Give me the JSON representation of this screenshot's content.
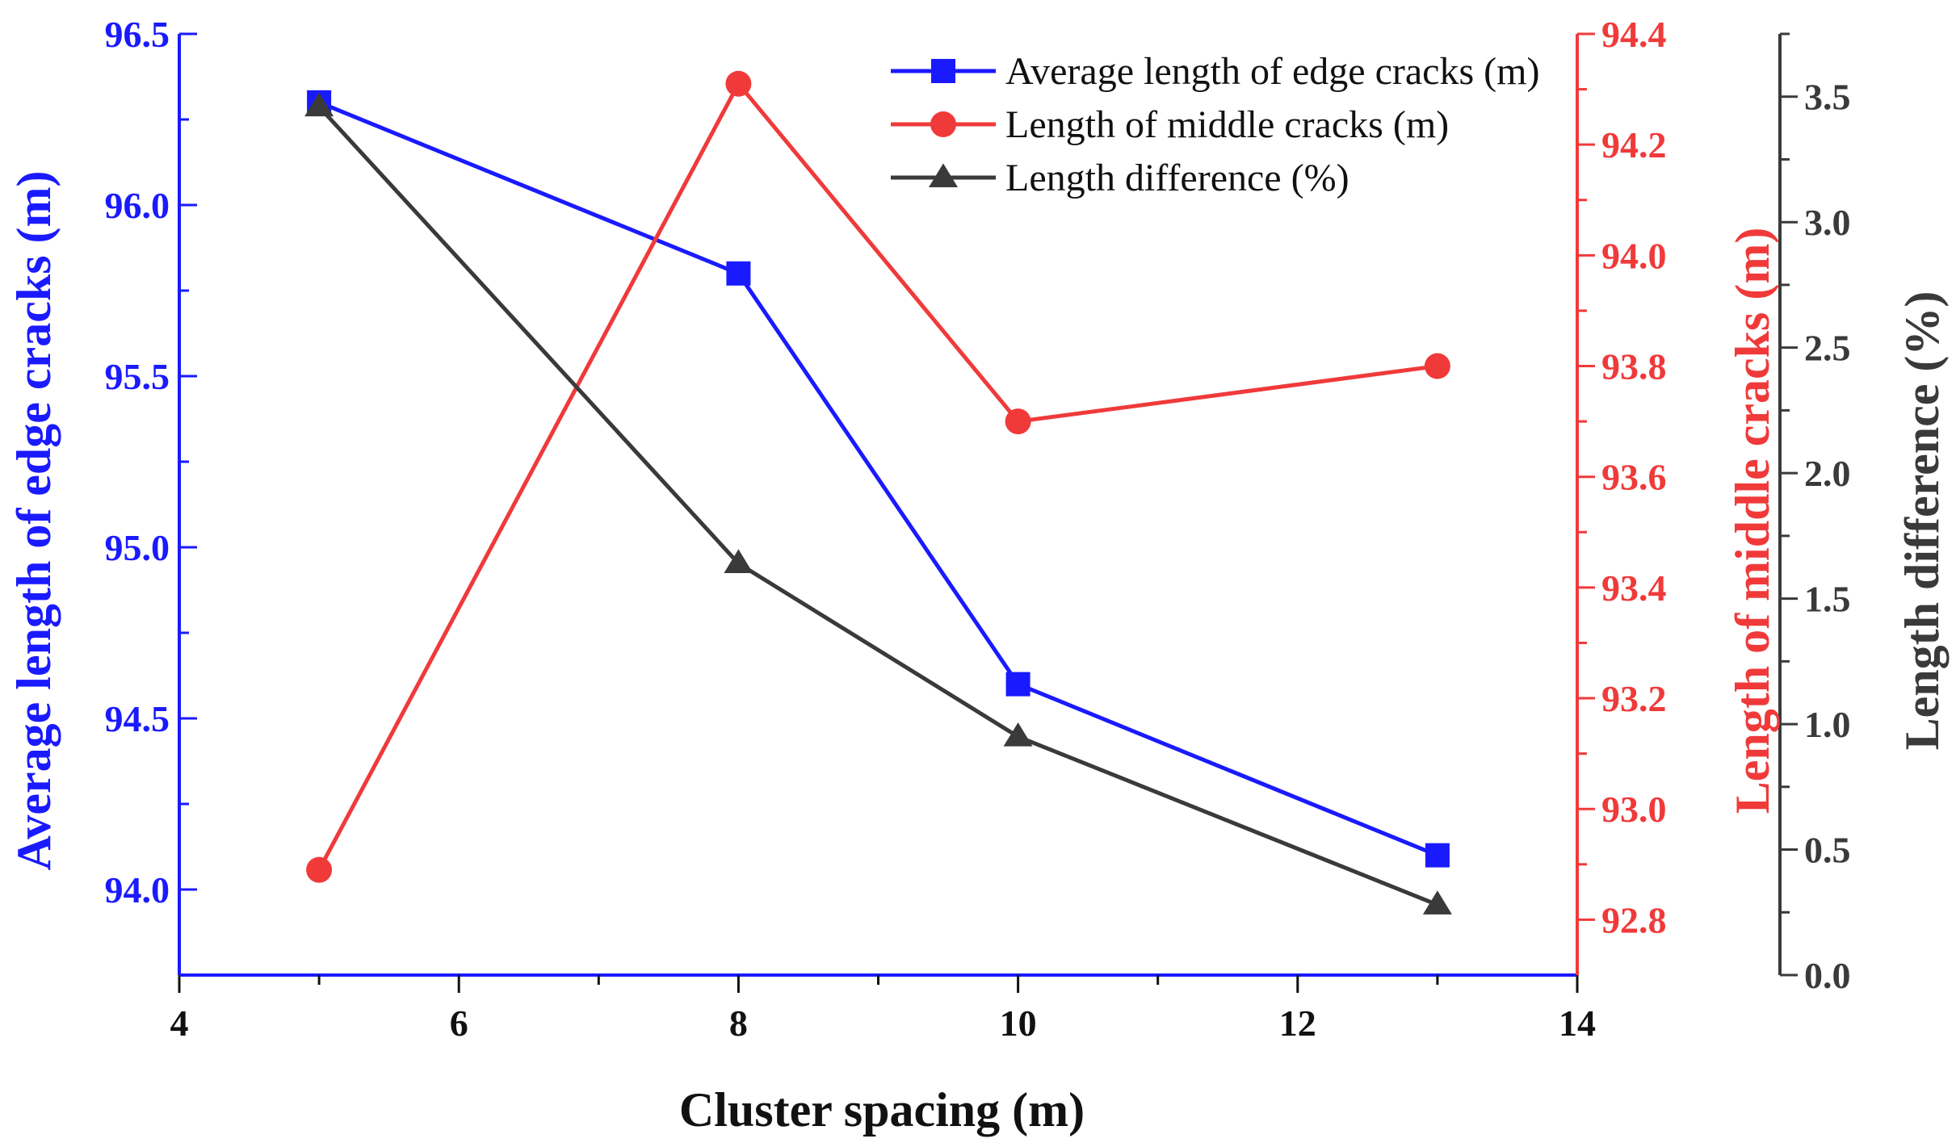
{
  "chart_data": {
    "type": "line",
    "xlabel": "Cluster spacing (m)",
    "x": [
      5,
      8,
      10,
      13
    ],
    "xlim": [
      4,
      14
    ],
    "xticks": [
      "4",
      "6",
      "8",
      "10",
      "12",
      "14"
    ],
    "series": [
      {
        "name": "Average length of edge cracks (m)",
        "axis": "left",
        "marker": "square",
        "color": "#1a1aff",
        "values": [
          96.3,
          95.8,
          94.6,
          94.1
        ]
      },
      {
        "name": "Length of middle cracks (m)",
        "axis": "middle",
        "marker": "circle",
        "color": "#f03a3a",
        "values": [
          92.89,
          94.31,
          93.7,
          93.8
        ]
      },
      {
        "name": "Length difference (%)",
        "axis": "right",
        "marker": "triangle",
        "color": "#3a3a3a",
        "values": [
          3.46,
          1.64,
          0.95,
          0.28
        ]
      }
    ],
    "axes": {
      "left": {
        "label": "Average length of edge cracks (m)",
        "color": "#1a1aff",
        "ylim": [
          93.75,
          96.5
        ],
        "ticks": [
          "94.0",
          "94.5",
          "95.0",
          "95.5",
          "96.0",
          "96.5"
        ]
      },
      "middle": {
        "label": "Length of middle cracks (m)",
        "color": "#f03a3a",
        "ylim": [
          92.7,
          94.4
        ],
        "ticks": [
          "92.8",
          "93.0",
          "93.2",
          "93.4",
          "93.6",
          "93.8",
          "94.0",
          "94.2",
          "94.4"
        ]
      },
      "right": {
        "label": "Length difference (%)",
        "color": "#3a3a3a",
        "ylim": [
          0.0,
          3.75
        ],
        "ticks": [
          "0.0",
          "0.5",
          "1.0",
          "1.5",
          "2.0",
          "2.5",
          "3.0",
          "3.5"
        ]
      }
    },
    "legend": "top-right"
  }
}
